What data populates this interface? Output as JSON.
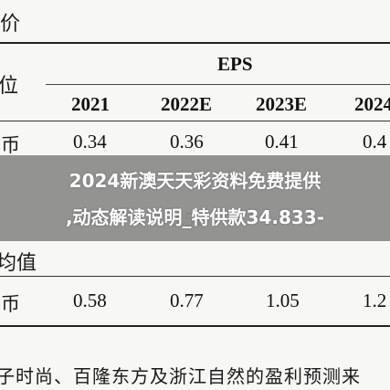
{
  "document": {
    "top_partial_label": "股价",
    "unit_label": "位",
    "eps_header": "EPS",
    "years": [
      "2021",
      "2022E",
      "2023E",
      "2024"
    ],
    "row_eps": {
      "currency_label": "民币",
      "values": [
        "0.34",
        "0.36",
        "0.41",
        "0.4"
      ]
    },
    "mid_label": "均值",
    "row_avg": {
      "currency_label": "民币",
      "values": [
        "0.58",
        "0.77",
        "1.05",
        "1.2"
      ]
    },
    "footer_text": "子时尚、百隆东方及浙江自然的盈利预测来"
  },
  "overlay": {
    "line1": "2024新澳天天彩资料免费提供",
    "line2": ",动态解读说明_特供款34.833-"
  }
}
